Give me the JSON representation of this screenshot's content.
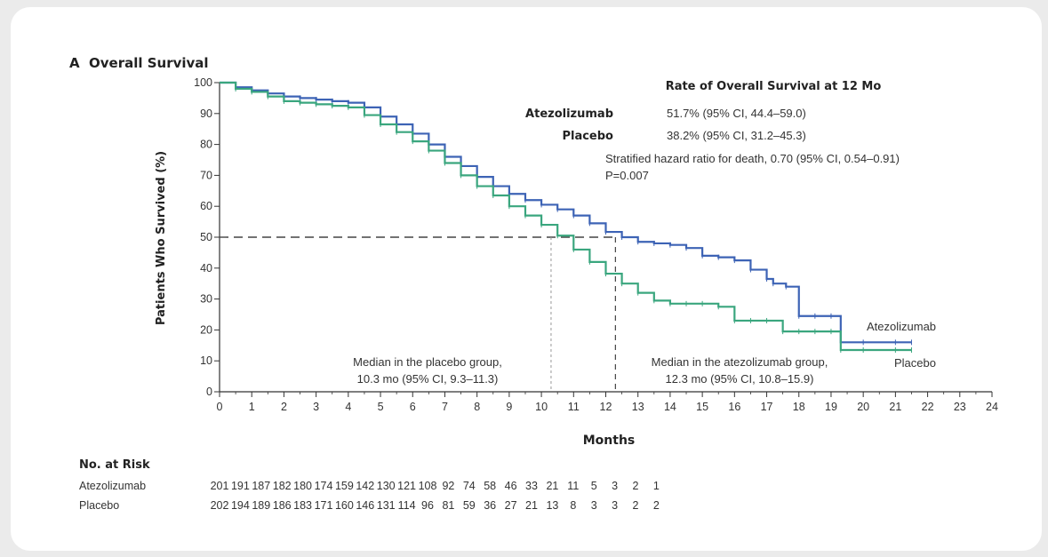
{
  "chart_data": {
    "type": "line",
    "panel_letter": "A",
    "title": "Overall Survival",
    "xlabel": "Months",
    "ylabel": "Patients Who Survived (%)",
    "xlim": [
      0,
      24
    ],
    "ylim": [
      0,
      100
    ],
    "xticks": [
      0,
      1,
      2,
      3,
      4,
      5,
      6,
      7,
      8,
      9,
      10,
      11,
      12,
      13,
      14,
      15,
      16,
      17,
      18,
      19,
      20,
      21,
      22,
      23,
      24
    ],
    "yticks": [
      0,
      10,
      20,
      30,
      40,
      50,
      60,
      70,
      80,
      90,
      100
    ],
    "grid": false,
    "series": [
      {
        "name": "Atezolizumab",
        "color": "#3d63b5",
        "x": [
          0,
          0.5,
          1,
          1.5,
          2,
          2.5,
          3,
          3.5,
          4,
          4.5,
          5,
          5.5,
          6,
          6.5,
          7,
          7.5,
          8,
          8.5,
          9,
          9.5,
          10,
          10.5,
          11,
          11.5,
          12,
          12.5,
          13,
          13.5,
          14,
          14.5,
          15,
          15.5,
          16,
          16.5,
          17,
          17.2,
          17.6,
          18,
          18.5,
          19,
          19.3,
          20,
          21,
          21.5
        ],
        "y": [
          100,
          98.5,
          97.5,
          96.5,
          95.5,
          95,
          94.5,
          94,
          93.5,
          92,
          89,
          86.5,
          83.5,
          80,
          76,
          73,
          69.5,
          66.5,
          64,
          62,
          60.5,
          59,
          57,
          54.5,
          51.7,
          50,
          48.5,
          48,
          47.5,
          46.5,
          44,
          43.5,
          42.5,
          39.5,
          36.5,
          35,
          34,
          24.5,
          24.5,
          24.5,
          16,
          16,
          16,
          16
        ]
      },
      {
        "name": "Placebo",
        "color": "#3aa67e",
        "x": [
          0,
          0.5,
          1,
          1.5,
          2,
          2.5,
          3,
          3.5,
          4,
          4.5,
          5,
          5.5,
          6,
          6.5,
          7,
          7.5,
          8,
          8.5,
          9,
          9.5,
          10,
          10.5,
          11,
          11.5,
          12,
          12.5,
          13,
          13.5,
          14,
          14.5,
          15,
          15.5,
          16,
          16.5,
          17,
          17.5,
          18,
          18.5,
          19,
          19.3,
          20,
          21,
          21.5
        ],
        "y": [
          100,
          98,
          97,
          95.5,
          94,
          93.5,
          93,
          92.5,
          92,
          89.5,
          86.5,
          84,
          81,
          78,
          74,
          70,
          66.5,
          63.5,
          60,
          57,
          54,
          50.5,
          46,
          42,
          38.2,
          35,
          32,
          29.5,
          28.5,
          28.5,
          28.5,
          27.5,
          23,
          23,
          23,
          19.5,
          19.5,
          19.5,
          19.5,
          13.5,
          13.5,
          13.5,
          13.5
        ]
      }
    ]
  },
  "annotations": {
    "table_title": "Rate of Overall Survival at 12 Mo",
    "rows": [
      {
        "group": "Atezolizumab",
        "value": "51.7% (95% CI, 44.4–59.0)"
      },
      {
        "group": "Placebo",
        "value": "38.2% (95% CI, 31.2–45.3)"
      }
    ],
    "hazard": "Stratified hazard ratio for death, 0.70 (95% CI, 0.54–0.91)",
    "pvalue": "P=0.007",
    "median_placebo_line1": "Median in the placebo group,",
    "median_placebo_line2": "10.3 mo (95% CI, 9.3–11.3)",
    "median_atezo_line1": "Median in the atezolizumab group,",
    "median_atezo_line2": "12.3 mo (95% CI, 10.8–15.9)",
    "median_placebo_month": 10.3,
    "median_atezo_month": 12.3,
    "median_level": 50,
    "label_atezo": "Atezolizumab",
    "label_placebo": "Placebo"
  },
  "risk_table": {
    "title": "No. at Risk",
    "rows": [
      {
        "label": "Atezolizumab",
        "values": [
          201,
          191,
          187,
          182,
          180,
          174,
          159,
          142,
          130,
          121,
          108,
          92,
          74,
          58,
          46,
          33,
          21,
          11,
          5,
          3,
          2,
          1
        ]
      },
      {
        "label": "Placebo",
        "values": [
          202,
          194,
          189,
          186,
          183,
          171,
          160,
          146,
          131,
          114,
          96,
          81,
          59,
          36,
          27,
          21,
          13,
          8,
          3,
          3,
          2,
          2
        ]
      }
    ]
  }
}
